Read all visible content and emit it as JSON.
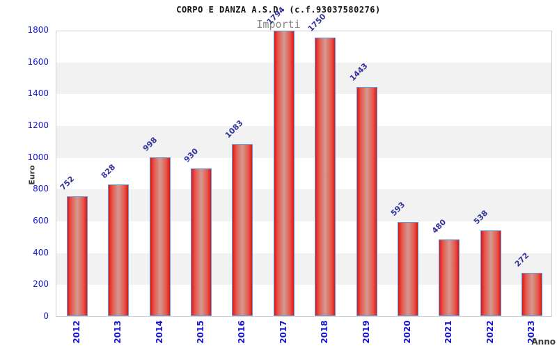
{
  "header": {
    "title": "CORPO E DANZA A.S.D. (c.f.93037580276)",
    "subtitle": "Importi"
  },
  "chart_data": {
    "type": "bar",
    "title": "CORPO E DANZA A.S.D. (c.f.93037580276)",
    "subtitle": "Importi",
    "categories": [
      "2012",
      "2013",
      "2014",
      "2015",
      "2016",
      "2017",
      "2018",
      "2019",
      "2020",
      "2021",
      "2022",
      "2023"
    ],
    "values": [
      752,
      828,
      998,
      930,
      1083,
      1794,
      1750,
      1443,
      593,
      480,
      538,
      272
    ],
    "xlabel": "Anno",
    "ylabel": "Euro",
    "ylim": [
      0,
      1800
    ],
    "ytick_step": 200,
    "ytick_labels": [
      "0",
      "200",
      "400",
      "600",
      "800",
      "1000",
      "1200",
      "1400",
      "1600",
      "1800"
    ],
    "grid": "alternating-horizontal-bands",
    "legend": "none",
    "colors": {
      "bar_fill_edge": "#df1414",
      "bar_fill_center": "#d29a92",
      "bar_border": "#5ca0e6",
      "tick_label": "#1515cf",
      "value_label": "#34349c",
      "band": "#f2f2f2",
      "plot_border": "#cccccc",
      "subtitle": "#878787",
      "axis_label": "#3a3a3a",
      "background": "#ffffff"
    }
  }
}
